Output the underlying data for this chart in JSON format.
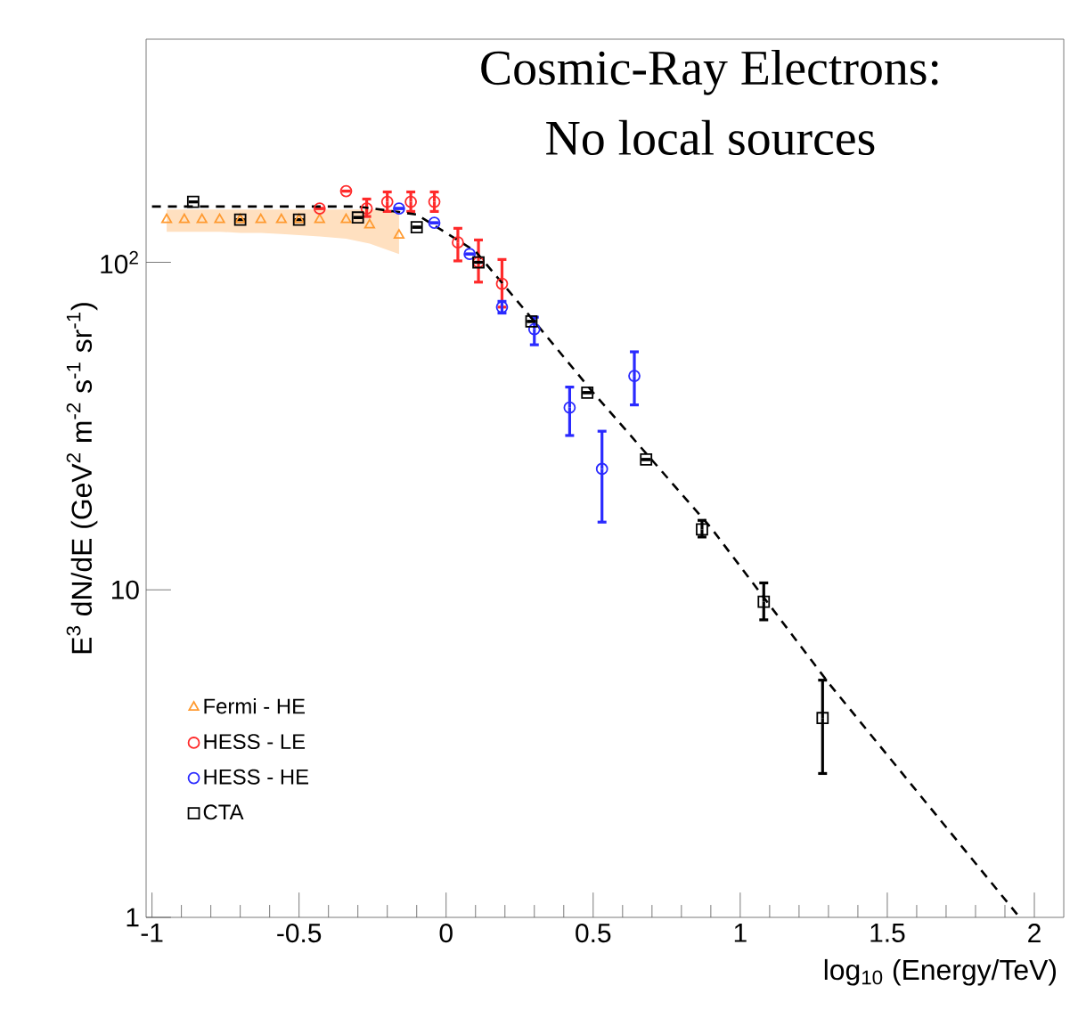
{
  "chart_data": {
    "type": "scatter",
    "title": "Cosmic-Ray Electrons:",
    "subtitle": "No local sources",
    "xlabel": "log$_{10}$ (Energy/TeV)",
    "ylabel": "E$^{3}$ dN/dE (GeV$^{2}$ m$^{-2}$ s$^{-1}$ sr$^{-1}$)",
    "log": "y",
    "xlim": [
      -1.02,
      2.1
    ],
    "ylim": [
      1,
      480
    ],
    "xticks": [
      -1,
      -0.5,
      0,
      0.5,
      1,
      1.5,
      2
    ],
    "yticks": [
      1,
      10,
      {
        "value": 100,
        "label": "10$^{2}$"
      }
    ],
    "legend": "bottom left",
    "grid": false,
    "series": [
      {
        "name": "Fermi - HE",
        "color": "#ff9a30",
        "marker": "triangle",
        "x": [
          -0.95,
          -0.89,
          -0.83,
          -0.77,
          -0.7,
          -0.63,
          -0.56,
          -0.5,
          -0.43,
          -0.34,
          -0.26,
          -0.16
        ],
        "values": [
          135,
          135,
          135,
          135,
          135,
          135,
          135,
          135,
          135,
          135,
          130,
          121
        ],
        "lower": [
          124,
          124,
          124,
          124,
          123,
          123,
          122,
          121,
          120,
          118,
          114,
          106
        ],
        "upper": [
          145,
          145,
          145,
          145,
          145,
          145,
          145,
          145,
          145,
          145,
          145,
          145
        ]
      },
      {
        "name": "HESS - LE",
        "color": "#ff2a2a",
        "marker": "circle",
        "x": [
          -0.43,
          -0.34,
          -0.27,
          -0.2,
          -0.12,
          -0.04,
          0.04,
          0.11,
          0.19
        ],
        "values": [
          146,
          165,
          146,
          153,
          153,
          153,
          115,
          100,
          86
        ],
        "errors": [
          null,
          null,
          [
            138,
            156
          ],
          [
            143,
            164
          ],
          [
            143,
            164
          ],
          [
            143,
            164
          ],
          [
            101,
            127
          ],
          [
            87,
            117
          ],
          [
            73,
            102
          ]
        ]
      },
      {
        "name": "HESS - HE",
        "color": "#2a2aff",
        "marker": "circle",
        "x": [
          -0.16,
          -0.04,
          0.08,
          0.19,
          0.3,
          0.42,
          0.53,
          0.64
        ],
        "values": [
          146,
          132,
          106,
          73,
          62.5,
          36,
          23.4,
          45
        ],
        "errors": [
          null,
          null,
          null,
          [
            70,
            76
          ],
          [
            56,
            68
          ],
          [
            29.6,
            41.6
          ],
          [
            16.1,
            30.5
          ],
          [
            36.7,
            53.3
          ]
        ]
      },
      {
        "name": "CTA",
        "color": "#000000",
        "marker": "square",
        "x": [
          -0.86,
          -0.7,
          -0.5,
          -0.3,
          -0.1,
          0.11,
          0.29,
          0.48,
          0.68,
          0.87,
          1.08,
          1.28
        ],
        "values": [
          153,
          135,
          135,
          137,
          128,
          100,
          66,
          40,
          25,
          15.3,
          9.2,
          4.06
        ],
        "errors": [
          null,
          null,
          null,
          null,
          null,
          null,
          null,
          null,
          null,
          [
            14.5,
            16.3
          ],
          [
            8.1,
            10.5
          ],
          [
            2.75,
            5.3
          ]
        ]
      },
      {
        "type": "line",
        "color": "#000000",
        "marker": "none",
        "line_style": "dashed",
        "x": [
          -1,
          -0.3,
          -0.1,
          0.1,
          0.3,
          0.5,
          0.9,
          1.3,
          1.95
        ],
        "values": [
          148,
          148,
          140,
          108,
          66,
          40,
          15.5,
          5.2,
          1
        ]
      }
    ]
  }
}
